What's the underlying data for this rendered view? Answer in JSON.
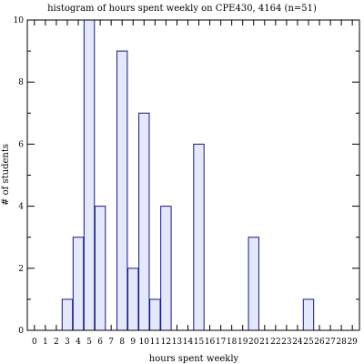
{
  "chart_data": {
    "type": "bar",
    "title": "histogram of hours spent weekly on CPE430, 4164 (n=51)",
    "xlabel": "hours spent weekly",
    "ylabel": "# of students",
    "categories": [
      "0",
      "1",
      "2",
      "3",
      "4",
      "5",
      "6",
      "7",
      "8",
      "9",
      "10",
      "11",
      "12",
      "13",
      "14",
      "15",
      "16",
      "17",
      "18",
      "19",
      "20",
      "21",
      "22",
      "23",
      "24",
      "25",
      "26",
      "27",
      "28",
      "29"
    ],
    "values": [
      0,
      0,
      0,
      1,
      3,
      10,
      4,
      0,
      9,
      2,
      7,
      1,
      4,
      0,
      0,
      6,
      0,
      0,
      0,
      0,
      3,
      0,
      0,
      0,
      0,
      1,
      0,
      0,
      0,
      0
    ],
    "ylim": [
      0,
      10
    ],
    "yticks": [
      0,
      2,
      4,
      6,
      8,
      10
    ],
    "colors": {
      "bar_fill": "#e3e8fb",
      "bar_stroke": "#1a1a80"
    },
    "grid": false
  }
}
